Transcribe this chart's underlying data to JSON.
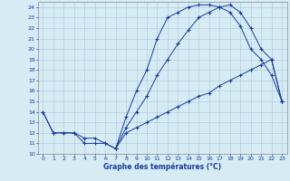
{
  "xlabel": "Graphe des températures (°C)",
  "bg_color": "#d5ecf5",
  "line_color": "#1a3a9e",
  "grid_color": "#b0c8d8",
  "xlim": [
    -0.5,
    23.5
  ],
  "ylim": [
    10,
    24.5
  ],
  "yticks": [
    10,
    11,
    12,
    13,
    14,
    15,
    16,
    17,
    18,
    19,
    20,
    21,
    22,
    23,
    24
  ],
  "xticks": [
    0,
    1,
    2,
    3,
    4,
    5,
    6,
    7,
    8,
    9,
    10,
    11,
    12,
    13,
    14,
    15,
    16,
    17,
    18,
    19,
    20,
    21,
    22,
    23
  ],
  "line1_x": [
    0,
    1,
    2,
    3,
    4,
    5,
    6,
    7,
    8,
    9,
    10,
    11,
    12,
    13,
    14,
    15,
    16,
    17,
    18,
    19,
    20,
    21,
    22,
    23
  ],
  "line1_y": [
    14,
    12,
    12,
    12,
    11,
    11,
    11,
    10.5,
    13.5,
    16,
    18,
    21,
    23,
    23.5,
    24,
    24.2,
    24.2,
    24,
    23.5,
    22.2,
    20,
    19,
    17.5,
    15
  ],
  "line2_x": [
    0,
    1,
    2,
    3,
    4,
    5,
    6,
    7,
    8,
    9,
    10,
    11,
    12,
    13,
    14,
    15,
    16,
    17,
    18,
    19,
    20,
    21,
    22,
    23
  ],
  "line2_y": [
    14,
    12,
    12,
    12,
    11.5,
    11.5,
    11,
    10.5,
    12,
    12.5,
    13,
    13.5,
    14,
    14.5,
    15,
    15.5,
    15.8,
    16.5,
    17,
    17.5,
    18,
    18.5,
    19,
    15
  ],
  "line3_x": [
    7,
    8,
    9,
    10,
    11,
    12,
    13,
    14,
    15,
    16,
    17,
    18,
    19,
    20,
    21,
    22,
    23
  ],
  "line3_y": [
    10.5,
    12.5,
    14,
    15.5,
    17.5,
    19,
    20.5,
    21.8,
    23,
    23.5,
    24,
    24.2,
    23.5,
    22,
    20,
    19,
    15
  ]
}
